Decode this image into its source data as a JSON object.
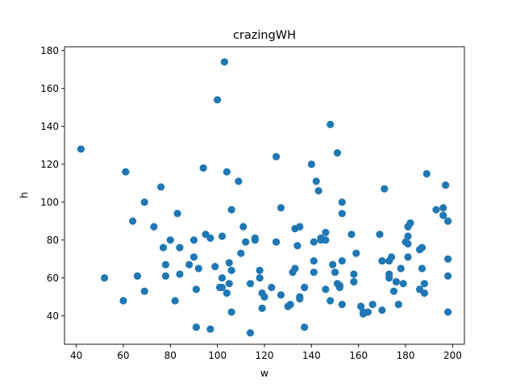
{
  "chart_data": {
    "type": "scatter",
    "title": "crazingWH",
    "xlabel": "w",
    "ylabel": "h",
    "xlim": [
      35,
      205
    ],
    "ylim": [
      25,
      182
    ],
    "xticks": [
      "40",
      "60",
      "80",
      "100",
      "120",
      "140",
      "160",
      "180",
      "200"
    ],
    "yticks": [
      "40",
      "60",
      "80",
      "100",
      "120",
      "140",
      "160",
      "180"
    ],
    "grid": false,
    "marker_color": "#1f77b4",
    "points": [
      {
        "x": 42,
        "y": 128
      },
      {
        "x": 52,
        "y": 60
      },
      {
        "x": 60,
        "y": 48
      },
      {
        "x": 61,
        "y": 116
      },
      {
        "x": 64,
        "y": 90
      },
      {
        "x": 66,
        "y": 61
      },
      {
        "x": 69,
        "y": 53
      },
      {
        "x": 69,
        "y": 100
      },
      {
        "x": 73,
        "y": 87
      },
      {
        "x": 76,
        "y": 108
      },
      {
        "x": 77,
        "y": 76
      },
      {
        "x": 78,
        "y": 67
      },
      {
        "x": 78,
        "y": 61
      },
      {
        "x": 80,
        "y": 80
      },
      {
        "x": 82,
        "y": 48
      },
      {
        "x": 83,
        "y": 94
      },
      {
        "x": 84,
        "y": 76
      },
      {
        "x": 84,
        "y": 62
      },
      {
        "x": 88,
        "y": 67
      },
      {
        "x": 90,
        "y": 71
      },
      {
        "x": 90,
        "y": 80
      },
      {
        "x": 91,
        "y": 54
      },
      {
        "x": 91,
        "y": 34
      },
      {
        "x": 92,
        "y": 65
      },
      {
        "x": 94,
        "y": 118
      },
      {
        "x": 95,
        "y": 83
      },
      {
        "x": 97,
        "y": 81
      },
      {
        "x": 97,
        "y": 33
      },
      {
        "x": 99,
        "y": 66
      },
      {
        "x": 100,
        "y": 154
      },
      {
        "x": 101,
        "y": 55
      },
      {
        "x": 102,
        "y": 82
      },
      {
        "x": 102,
        "y": 60
      },
      {
        "x": 102,
        "y": 55
      },
      {
        "x": 103,
        "y": 174
      },
      {
        "x": 104,
        "y": 52
      },
      {
        "x": 104,
        "y": 116
      },
      {
        "x": 105,
        "y": 57
      },
      {
        "x": 105,
        "y": 68
      },
      {
        "x": 106,
        "y": 64
      },
      {
        "x": 106,
        "y": 96
      },
      {
        "x": 106,
        "y": 42
      },
      {
        "x": 109,
        "y": 111
      },
      {
        "x": 110,
        "y": 73
      },
      {
        "x": 111,
        "y": 87
      },
      {
        "x": 112,
        "y": 79
      },
      {
        "x": 114,
        "y": 31
      },
      {
        "x": 114,
        "y": 57
      },
      {
        "x": 116,
        "y": 81
      },
      {
        "x": 116,
        "y": 80
      },
      {
        "x": 118,
        "y": 64
      },
      {
        "x": 118,
        "y": 60
      },
      {
        "x": 119,
        "y": 44
      },
      {
        "x": 119,
        "y": 52
      },
      {
        "x": 120,
        "y": 50
      },
      {
        "x": 123,
        "y": 55
      },
      {
        "x": 125,
        "y": 124
      },
      {
        "x": 125,
        "y": 79
      },
      {
        "x": 127,
        "y": 51
      },
      {
        "x": 127,
        "y": 97
      },
      {
        "x": 130,
        "y": 45
      },
      {
        "x": 131,
        "y": 46
      },
      {
        "x": 132,
        "y": 63
      },
      {
        "x": 133,
        "y": 65
      },
      {
        "x": 133,
        "y": 86
      },
      {
        "x": 134,
        "y": 77
      },
      {
        "x": 135,
        "y": 87
      },
      {
        "x": 135,
        "y": 50
      },
      {
        "x": 135,
        "y": 49
      },
      {
        "x": 137,
        "y": 55
      },
      {
        "x": 137,
        "y": 34
      },
      {
        "x": 140,
        "y": 120
      },
      {
        "x": 141,
        "y": 79
      },
      {
        "x": 141,
        "y": 69
      },
      {
        "x": 141,
        "y": 63
      },
      {
        "x": 142,
        "y": 111
      },
      {
        "x": 143,
        "y": 106
      },
      {
        "x": 144,
        "y": 80
      },
      {
        "x": 144,
        "y": 81
      },
      {
        "x": 146,
        "y": 84
      },
      {
        "x": 146,
        "y": 80
      },
      {
        "x": 146,
        "y": 54
      },
      {
        "x": 148,
        "y": 141
      },
      {
        "x": 148,
        "y": 48
      },
      {
        "x": 149,
        "y": 67
      },
      {
        "x": 150,
        "y": 63
      },
      {
        "x": 151,
        "y": 126
      },
      {
        "x": 151,
        "y": 57
      },
      {
        "x": 152,
        "y": 55
      },
      {
        "x": 152,
        "y": 56
      },
      {
        "x": 153,
        "y": 69
      },
      {
        "x": 153,
        "y": 100
      },
      {
        "x": 153,
        "y": 94
      },
      {
        "x": 153,
        "y": 46
      },
      {
        "x": 157,
        "y": 83
      },
      {
        "x": 158,
        "y": 58
      },
      {
        "x": 158,
        "y": 62
      },
      {
        "x": 159,
        "y": 73
      },
      {
        "x": 161,
        "y": 45
      },
      {
        "x": 162,
        "y": 42
      },
      {
        "x": 162,
        "y": 41
      },
      {
        "x": 164,
        "y": 42
      },
      {
        "x": 166,
        "y": 46
      },
      {
        "x": 169,
        "y": 83
      },
      {
        "x": 170,
        "y": 69
      },
      {
        "x": 170,
        "y": 43
      },
      {
        "x": 171,
        "y": 107
      },
      {
        "x": 173,
        "y": 69
      },
      {
        "x": 173,
        "y": 60
      },
      {
        "x": 173,
        "y": 62
      },
      {
        "x": 174,
        "y": 71
      },
      {
        "x": 175,
        "y": 53
      },
      {
        "x": 176,
        "y": 58
      },
      {
        "x": 177,
        "y": 46
      },
      {
        "x": 178,
        "y": 65
      },
      {
        "x": 179,
        "y": 57
      },
      {
        "x": 180,
        "y": 79
      },
      {
        "x": 181,
        "y": 78
      },
      {
        "x": 181,
        "y": 87
      },
      {
        "x": 181,
        "y": 82
      },
      {
        "x": 181,
        "y": 71
      },
      {
        "x": 182,
        "y": 89
      },
      {
        "x": 186,
        "y": 54
      },
      {
        "x": 186,
        "y": 75
      },
      {
        "x": 187,
        "y": 65
      },
      {
        "x": 187,
        "y": 76
      },
      {
        "x": 188,
        "y": 57
      },
      {
        "x": 188,
        "y": 52
      },
      {
        "x": 189,
        "y": 115
      },
      {
        "x": 193,
        "y": 96
      },
      {
        "x": 196,
        "y": 97
      },
      {
        "x": 196,
        "y": 93
      },
      {
        "x": 197,
        "y": 109
      },
      {
        "x": 198,
        "y": 90
      },
      {
        "x": 198,
        "y": 70
      },
      {
        "x": 198,
        "y": 61
      },
      {
        "x": 198,
        "y": 42
      }
    ]
  }
}
